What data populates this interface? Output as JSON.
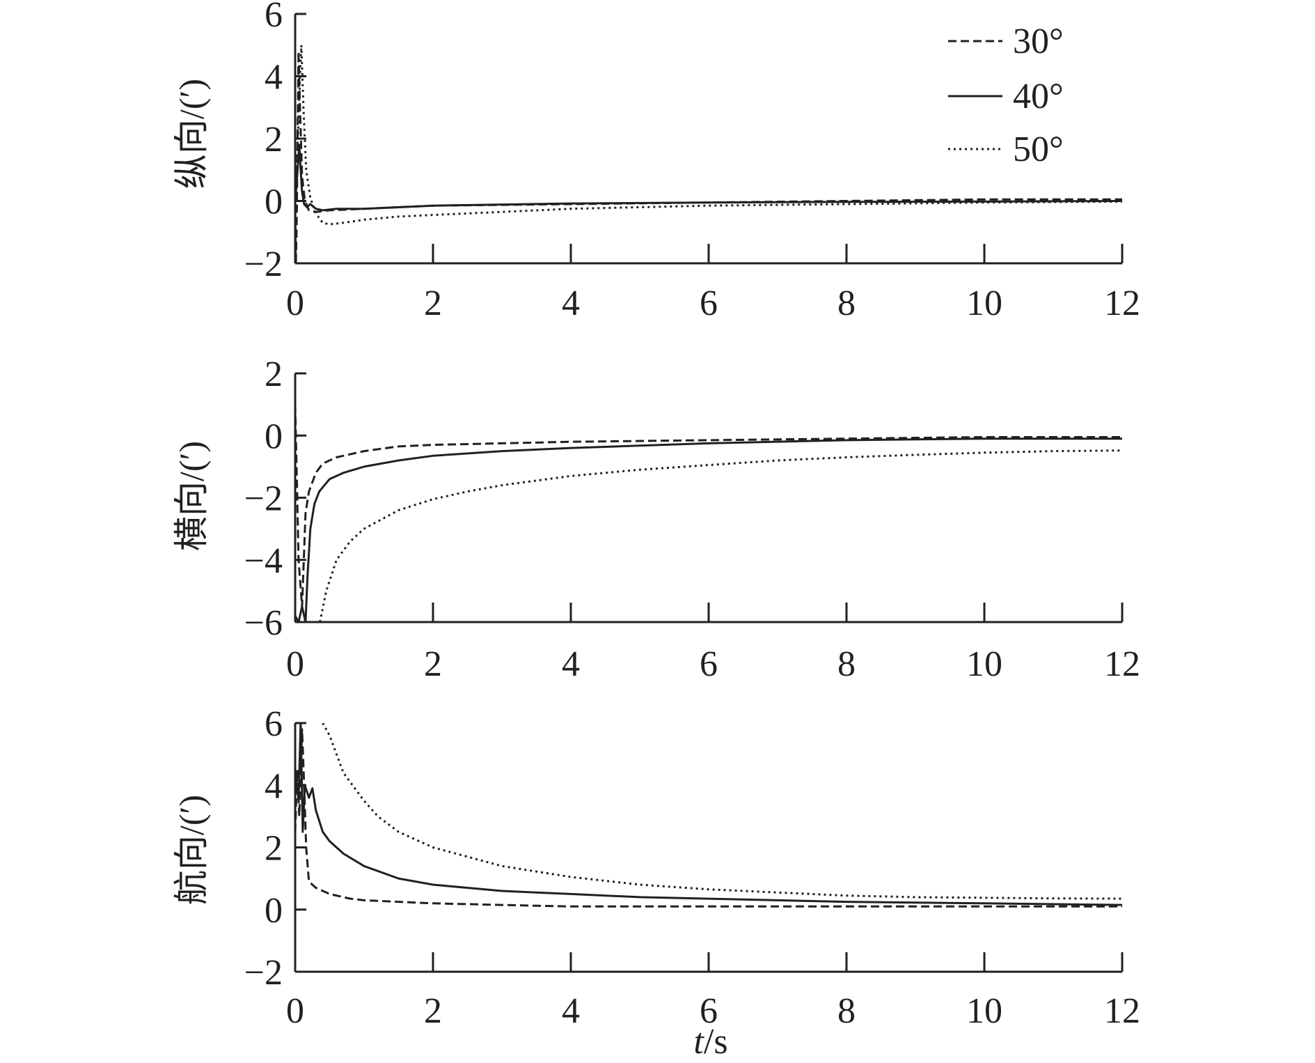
{
  "figure": {
    "xlabel_italic": "t",
    "xlabel_rest": "/s"
  },
  "legend": {
    "items": [
      {
        "label": "30°",
        "style": "dashed"
      },
      {
        "label": "40°",
        "style": "solid"
      },
      {
        "label": "50°",
        "style": "dotted"
      }
    ]
  },
  "chart_data": [
    {
      "type": "line",
      "name": "longitudinal",
      "ylabel": "纵向/(′)",
      "xlim": [
        0,
        12
      ],
      "ylim": [
        -2,
        6
      ],
      "xticks": [
        0,
        2,
        4,
        6,
        8,
        10,
        12
      ],
      "xtick_labels": [
        "0",
        "2",
        "4",
        "6",
        "8",
        "10",
        "12"
      ],
      "yticks": [
        -2,
        0,
        2,
        4,
        6
      ],
      "ytick_labels": [
        "−2",
        "0",
        "2",
        "4",
        "6"
      ],
      "series": [
        {
          "name": "30°",
          "style": "dashed",
          "x": [
            0,
            0.01,
            0.02,
            0.04,
            0.05,
            0.07,
            0.1,
            0.14,
            0.2,
            0.3,
            0.5,
            1,
            2,
            4,
            6,
            8,
            10,
            12
          ],
          "y": [
            0,
            -2,
            -1,
            3,
            4.8,
            3,
            0.8,
            0,
            -0.3,
            -0.35,
            -0.3,
            -0.25,
            -0.15,
            -0.1,
            -0.05,
            0,
            0.05,
            0.05
          ]
        },
        {
          "name": "40°",
          "style": "solid",
          "x": [
            0,
            0.02,
            0.04,
            0.06,
            0.08,
            0.1,
            0.13,
            0.17,
            0.22,
            0.3,
            0.4,
            0.6,
            1,
            2,
            4,
            6,
            8,
            10,
            12
          ],
          "y": [
            0,
            0.5,
            1.2,
            1.8,
            1.0,
            0.3,
            -0.1,
            -0.2,
            -0.1,
            -0.25,
            -0.3,
            -0.25,
            -0.25,
            -0.15,
            -0.08,
            -0.05,
            -0.03,
            -0.02,
            0
          ]
        },
        {
          "name": "50°",
          "style": "dotted",
          "x": [
            0,
            0.04,
            0.07,
            0.09,
            0.12,
            0.16,
            0.22,
            0.3,
            0.4,
            0.5,
            0.7,
            1,
            1.5,
            2,
            3,
            4,
            6,
            8,
            10,
            12
          ],
          "y": [
            0,
            2,
            4,
            5,
            3,
            1,
            0.1,
            -0.4,
            -0.7,
            -0.75,
            -0.7,
            -0.6,
            -0.5,
            -0.45,
            -0.35,
            -0.25,
            -0.15,
            -0.1,
            -0.05,
            -0.02
          ]
        }
      ]
    },
    {
      "type": "line",
      "name": "lateral",
      "ylabel": "横向/(′)",
      "xlim": [
        0,
        12
      ],
      "ylim": [
        -6,
        2
      ],
      "xticks": [
        0,
        2,
        4,
        6,
        8,
        10,
        12
      ],
      "xtick_labels": [
        "0",
        "2",
        "4",
        "6",
        "8",
        "10",
        "12"
      ],
      "yticks": [
        -6,
        -4,
        -2,
        0,
        2
      ],
      "ytick_labels": [
        "−6",
        "−4",
        "−2",
        "0",
        "2"
      ],
      "series": [
        {
          "name": "30°",
          "style": "dashed",
          "x": [
            0,
            0.02,
            0.05,
            0.1,
            0.15,
            0.2,
            0.3,
            0.4,
            0.6,
            1,
            1.5,
            2,
            3,
            4,
            6,
            8,
            10,
            12
          ],
          "y": [
            1,
            -1,
            -4,
            -5.5,
            -2.5,
            -1.8,
            -1.2,
            -0.9,
            -0.7,
            -0.5,
            -0.35,
            -0.3,
            -0.25,
            -0.2,
            -0.15,
            -0.1,
            -0.05,
            -0.05
          ]
        },
        {
          "name": "40°",
          "style": "solid",
          "x": [
            0,
            0.05,
            0.1,
            0.15,
            0.18,
            0.22,
            0.28,
            0.35,
            0.5,
            0.7,
            1,
            1.5,
            2,
            3,
            4,
            6,
            8,
            10,
            12
          ],
          "y": [
            -5.8,
            -6,
            -5.5,
            -6,
            -4.5,
            -3,
            -2.2,
            -1.8,
            -1.4,
            -1.2,
            -1,
            -0.8,
            -0.65,
            -0.5,
            -0.4,
            -0.25,
            -0.15,
            -0.1,
            -0.1
          ]
        },
        {
          "name": "50°",
          "style": "dotted",
          "x": [
            0.36,
            0.45,
            0.6,
            0.8,
            1,
            1.5,
            2,
            2.5,
            3,
            4,
            5,
            6,
            7,
            8,
            9,
            10,
            11,
            12
          ],
          "y": [
            -6,
            -5,
            -4,
            -3.4,
            -3,
            -2.4,
            -2.05,
            -1.8,
            -1.6,
            -1.3,
            -1.1,
            -0.95,
            -0.8,
            -0.7,
            -0.62,
            -0.55,
            -0.5,
            -0.48
          ]
        }
      ]
    },
    {
      "type": "line",
      "name": "heading",
      "ylabel": "航向/(′)",
      "xlim": [
        0,
        12
      ],
      "ylim": [
        -2,
        6
      ],
      "xticks": [
        0,
        2,
        4,
        6,
        8,
        10,
        12
      ],
      "xtick_labels": [
        "0",
        "2",
        "4",
        "6",
        "8",
        "10",
        "12"
      ],
      "yticks": [
        -2,
        0,
        2,
        4,
        6
      ],
      "ytick_labels": [
        "−2",
        "0",
        "2",
        "4",
        "6"
      ],
      "series": [
        {
          "name": "30°",
          "style": "dashed",
          "x": [
            0,
            0.03,
            0.06,
            0.1,
            0.13,
            0.16,
            0.2,
            0.3,
            0.5,
            0.8,
            1,
            1.5,
            2,
            3,
            4,
            6,
            8,
            10,
            12
          ],
          "y": [
            2.5,
            4.5,
            3,
            5.8,
            4,
            2,
            0.9,
            0.7,
            0.5,
            0.35,
            0.3,
            0.25,
            0.2,
            0.15,
            0.1,
            0.1,
            0.1,
            0.1,
            0.1
          ]
        },
        {
          "name": "40°",
          "style": "solid",
          "x": [
            0,
            0.05,
            0.08,
            0.11,
            0.14,
            0.2,
            0.25,
            0.3,
            0.4,
            0.5,
            0.7,
            1,
            1.5,
            2,
            3,
            4,
            5,
            6,
            8,
            10,
            12
          ],
          "y": [
            4.5,
            3.5,
            6,
            2.5,
            4,
            3.6,
            3.9,
            3.2,
            2.5,
            2.2,
            1.8,
            1.4,
            1,
            0.8,
            0.6,
            0.5,
            0.4,
            0.35,
            0.25,
            0.2,
            0.15
          ]
        },
        {
          "name": "50°",
          "style": "dotted",
          "x": [
            0.4,
            0.5,
            0.6,
            0.7,
            0.8,
            1,
            1.2,
            1.5,
            2,
            2.5,
            3,
            4,
            5,
            6,
            7,
            8,
            9,
            10,
            11,
            12
          ],
          "y": [
            6,
            5.6,
            5,
            4.4,
            4.1,
            3.5,
            3,
            2.5,
            2,
            1.7,
            1.4,
            1.05,
            0.8,
            0.65,
            0.55,
            0.45,
            0.4,
            0.38,
            0.36,
            0.35
          ]
        }
      ]
    }
  ]
}
